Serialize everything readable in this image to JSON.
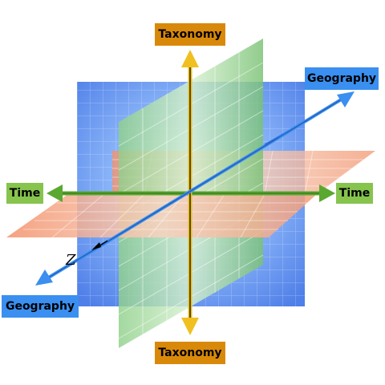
{
  "labels": {
    "taxonomy_top": "Taxonomy",
    "taxonomy_bottom": "Taxonomy",
    "time_left": "Time",
    "time_right": "Time",
    "geography_top": "Geography",
    "geography_bottom": "Geography",
    "z_axis": "Z"
  },
  "colors": {
    "taxonomy_label": "#d9890a",
    "time_label": "#86c44e",
    "geography_label": "#3a8ff0",
    "vertical_axis": "#e8c020",
    "horizontal_axis": "#5aa830",
    "depth_axis": "#3a8ff0",
    "blue_plane": "#5c8ff0",
    "green_plane": "#7cc47a",
    "orange_plane": "#f2a07a"
  }
}
